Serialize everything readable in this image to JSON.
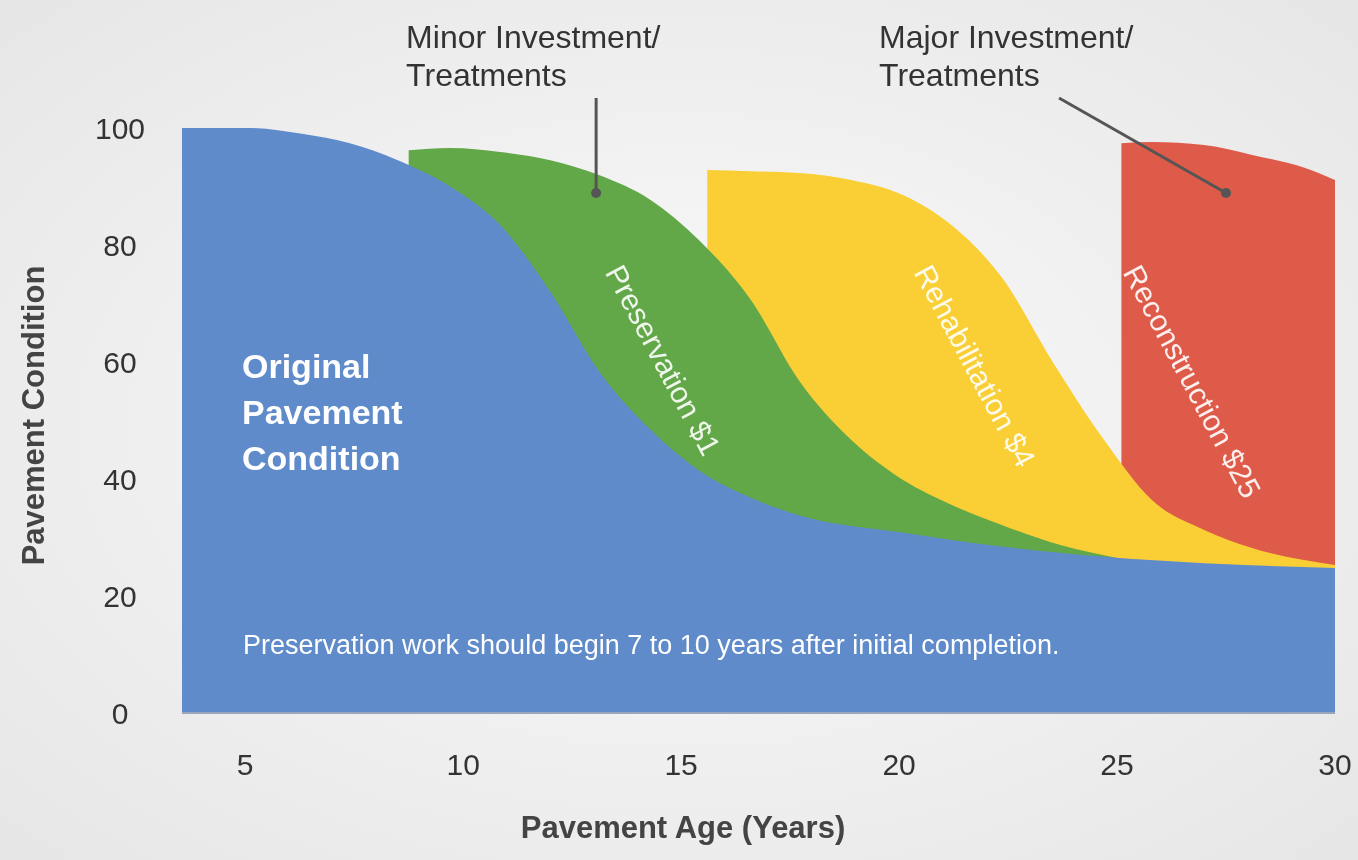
{
  "chart_data": {
    "type": "area",
    "xlabel": "Pavement Age (Years)",
    "ylabel": "Pavement Condition",
    "xlim": [
      3.55,
      30
    ],
    "xticks": [
      5,
      10,
      15,
      20,
      25,
      30
    ],
    "ylim": [
      0,
      100
    ],
    "yticks": [
      0,
      20,
      40,
      60,
      80,
      100
    ],
    "series": [
      {
        "name": "Original Pavement Condition",
        "color": "#5f8bcb",
        "x": [
          3.55,
          5.1,
          6.3,
          7.4,
          8.5,
          9.7,
          10.85,
          12.0,
          13.1,
          14.3,
          15.4,
          16.6,
          17.7,
          20.1,
          22.4,
          24.7,
          27.0,
          30
        ],
        "values": [
          100,
          100,
          99,
          97.4,
          94.5,
          90,
          83.4,
          72,
          58.6,
          48.4,
          41.5,
          36.8,
          33.8,
          30.8,
          28.4,
          26.7,
          25.6,
          24.8
        ]
      },
      {
        "name": "Preservation $1",
        "color": "#62a848",
        "x": [
          8.75,
          9.7,
          10.85,
          12.0,
          13.1,
          14.3,
          15.4,
          16.6,
          17.7,
          18.9,
          20.1,
          21.2,
          22.4,
          23.7,
          25.0
        ],
        "values": [
          96.2,
          96.6,
          95.9,
          94.5,
          92,
          87.7,
          80.9,
          70.6,
          56.9,
          46.7,
          39.8,
          35.6,
          32,
          28.7,
          26.5
        ]
      },
      {
        "name": "Rehabilitation $4",
        "color": "#f9cf35",
        "x": [
          15.6,
          16.6,
          17.7,
          18.9,
          20.1,
          21.2,
          22.4,
          23.5,
          24.7,
          25.8,
          27.0,
          28.1,
          30
        ],
        "values": [
          92.8,
          92.6,
          92.3,
          91.1,
          88.5,
          83.4,
          74,
          60.3,
          46.7,
          36.4,
          31.3,
          28.2,
          25.3
        ]
      },
      {
        "name": "Reconstruction $25",
        "color": "#de5b49",
        "x": [
          25.1,
          25.8,
          27.0,
          28.1,
          29.3,
          30
        ],
        "values": [
          97.4,
          97.6,
          97.1,
          95.4,
          93.2,
          91.1
        ]
      }
    ],
    "annotations": [
      {
        "text": "Minor Investment/\nTreatments",
        "x": 13.05,
        "y": 88.9
      },
      {
        "text": "Major Investment/\nTreatments",
        "x": 27.5,
        "y": 88.9
      },
      "Preservation work should begin 7 to 10 years after initial completion."
    ],
    "grid": false
  }
}
